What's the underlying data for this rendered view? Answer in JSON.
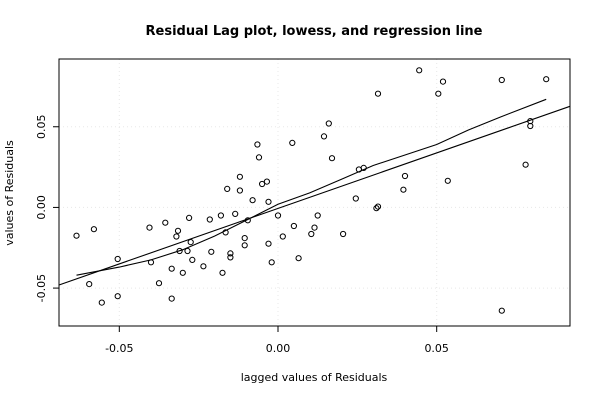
{
  "chart_data": {
    "type": "scatter",
    "title": "Residual Lag plot, lowess, and regression line",
    "xlabel": "lagged values of Residuals",
    "ylabel": "values of Residuals",
    "xlim": [
      -0.069,
      0.092
    ],
    "ylim": [
      -0.0735,
      0.092
    ],
    "xticks": [
      -0.05,
      0.0,
      0.05
    ],
    "xtick_labels": [
      "-0.05",
      "0.00",
      "0.05"
    ],
    "yticks": [
      -0.05,
      0.0,
      0.05
    ],
    "ytick_labels": [
      "-0.05",
      "0.00",
      "0.05"
    ],
    "grid": true,
    "points": [
      [
        -0.0635,
        -0.0175
      ],
      [
        -0.0595,
        -0.0475
      ],
      [
        -0.058,
        -0.0135
      ],
      [
        -0.0555,
        -0.059
      ],
      [
        -0.0505,
        -0.032
      ],
      [
        -0.0505,
        -0.055
      ],
      [
        -0.0405,
        -0.0125
      ],
      [
        -0.04,
        -0.034
      ],
      [
        -0.0375,
        -0.047
      ],
      [
        -0.0355,
        -0.0095
      ],
      [
        -0.0335,
        -0.038
      ],
      [
        -0.0335,
        -0.0565
      ],
      [
        -0.032,
        -0.018
      ],
      [
        -0.0315,
        -0.0145
      ],
      [
        -0.031,
        -0.027
      ],
      [
        -0.03,
        -0.0405
      ],
      [
        -0.0285,
        -0.027
      ],
      [
        -0.028,
        -0.0065
      ],
      [
        -0.0275,
        -0.0215
      ],
      [
        -0.027,
        -0.0325
      ],
      [
        -0.0235,
        -0.0365
      ],
      [
        -0.0215,
        -0.0075
      ],
      [
        -0.021,
        -0.0275
      ],
      [
        -0.018,
        -0.005
      ],
      [
        -0.0175,
        -0.0405
      ],
      [
        -0.0165,
        -0.0155
      ],
      [
        -0.016,
        0.0115
      ],
      [
        -0.015,
        -0.031
      ],
      [
        -0.015,
        -0.0285
      ],
      [
        -0.0135,
        -0.004
      ],
      [
        -0.012,
        0.019
      ],
      [
        -0.012,
        0.0105
      ],
      [
        -0.0105,
        -0.019
      ],
      [
        -0.0105,
        -0.0235
      ],
      [
        -0.0095,
        -0.008
      ],
      [
        -0.008,
        0.0045
      ],
      [
        -0.0065,
        0.039
      ],
      [
        -0.006,
        0.031
      ],
      [
        -0.005,
        0.0145
      ],
      [
        -0.0035,
        0.016
      ],
      [
        -0.003,
        0.0035
      ],
      [
        -0.003,
        -0.0225
      ],
      [
        -0.002,
        -0.034
      ],
      [
        0.0,
        -0.005
      ],
      [
        0.0015,
        -0.018
      ],
      [
        0.0045,
        0.04
      ],
      [
        0.005,
        -0.0115
      ],
      [
        0.0065,
        -0.0315
      ],
      [
        0.0105,
        -0.0165
      ],
      [
        0.0115,
        -0.0125
      ],
      [
        0.0125,
        -0.005
      ],
      [
        0.0145,
        0.044
      ],
      [
        0.016,
        0.052
      ],
      [
        0.017,
        0.0305
      ],
      [
        0.0205,
        -0.0165
      ],
      [
        0.0245,
        0.0055
      ],
      [
        0.0255,
        0.0235
      ],
      [
        0.027,
        0.0245
      ],
      [
        0.031,
        -0.0005
      ],
      [
        0.0315,
        0.0005
      ],
      [
        0.0315,
        0.0705
      ],
      [
        0.0395,
        0.011
      ],
      [
        0.04,
        0.0195
      ],
      [
        0.0445,
        0.085
      ],
      [
        0.0505,
        0.0705
      ],
      [
        0.052,
        0.078
      ],
      [
        0.0535,
        0.0165
      ],
      [
        0.0705,
        0.079
      ],
      [
        0.0705,
        -0.064
      ],
      [
        0.078,
        0.0265
      ],
      [
        0.0795,
        0.0505
      ],
      [
        0.0795,
        0.0535
      ],
      [
        0.0845,
        0.0795
      ]
    ],
    "series": [
      {
        "type": "line",
        "points": [
          [
            -0.069,
            -0.0481
          ],
          [
            0.092,
            0.0627
          ]
        ]
      },
      {
        "type": "line",
        "points": [
          [
            -0.0635,
            -0.042
          ],
          [
            -0.05,
            -0.037
          ],
          [
            -0.04,
            -0.0325
          ],
          [
            -0.03,
            -0.0262
          ],
          [
            -0.02,
            -0.0178
          ],
          [
            -0.01,
            -0.008
          ],
          [
            0.0,
            0.002
          ],
          [
            0.01,
            0.009
          ],
          [
            0.02,
            0.0175
          ],
          [
            0.03,
            0.026
          ],
          [
            0.04,
            0.0325
          ],
          [
            0.05,
            0.039
          ],
          [
            0.06,
            0.048
          ],
          [
            0.07,
            0.056
          ],
          [
            0.0845,
            0.067
          ]
        ]
      }
    ]
  }
}
